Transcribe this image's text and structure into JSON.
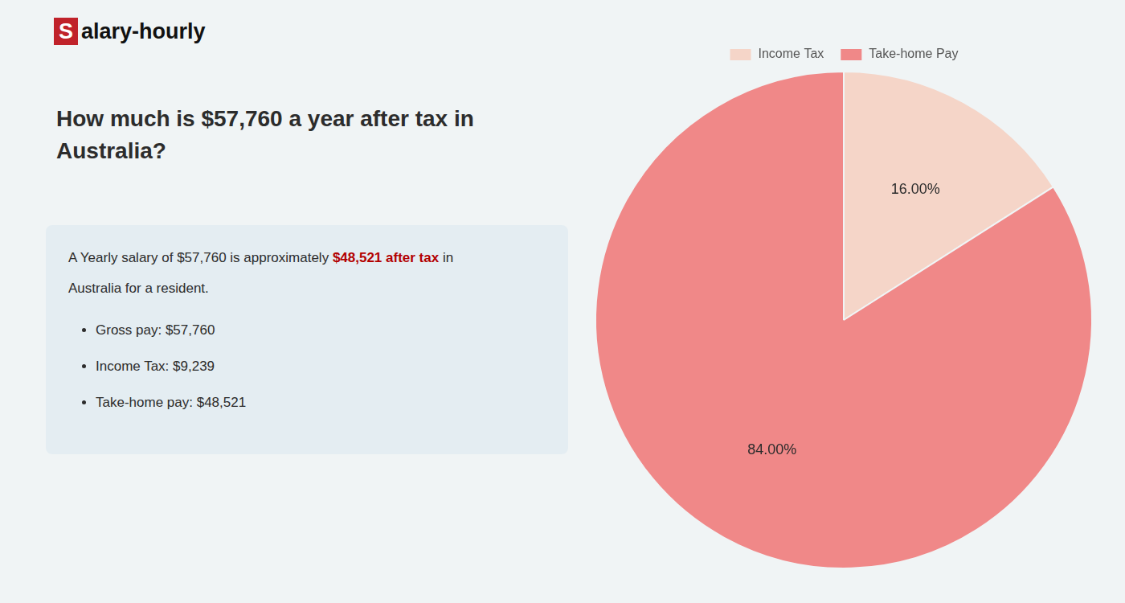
{
  "chart_data": {
    "type": "pie",
    "title": [
      "How much is $57,760 a year after tax in",
      "Australia?"
    ],
    "annotations": [
      [
        "S",
        "alary-hourly"
      ],
      [
        "A Yearly salary of $57,760 is approximately ",
        "$48,521 after tax",
        " in"
      ],
      [
        "Australia for a resident."
      ],
      [
        "Gross pay: $57,760"
      ],
      [
        "Income Tax: $9,239"
      ],
      [
        "Take-home pay: $48,521"
      ]
    ],
    "categories": [
      "Income Tax",
      "Take-home Pay"
    ],
    "values": [
      16.0,
      84.0
    ],
    "value_labels": [
      "16.00%",
      "84.00%"
    ],
    "data_labels": true,
    "colors": [
      "#f5d5c8",
      "#f08888"
    ],
    "legend": "top"
  }
}
